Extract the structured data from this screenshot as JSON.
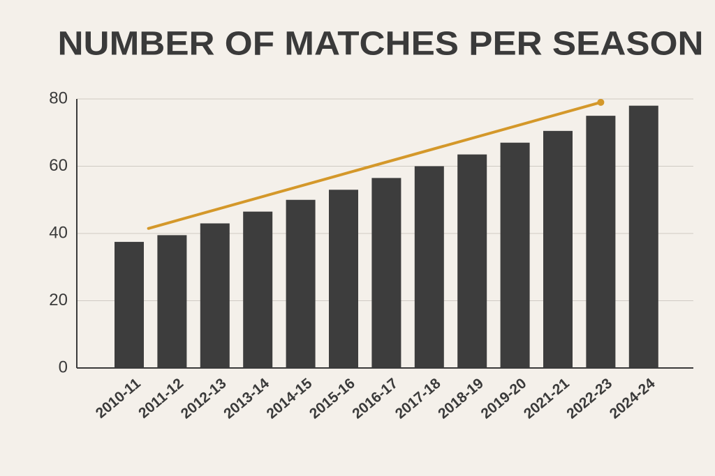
{
  "chart_data": {
    "type": "bar",
    "title": "NUMBER OF MATCHES PER SEASON",
    "categories": [
      "2010-11",
      "2011-12",
      "2012-13",
      "2013-14",
      "2014-15",
      "2015-16",
      "2016-17",
      "2017-18",
      "2018-19",
      "2019-20",
      "2021-21",
      "2022-23",
      "2024-24"
    ],
    "values": [
      37.5,
      39.5,
      43,
      46.5,
      50,
      53,
      56.5,
      60,
      63.5,
      67,
      70.5,
      75,
      78
    ],
    "color": "#3d3d3d",
    "trend": {
      "color": "#d4982a",
      "values": [
        41.5,
        79
      ]
    },
    "ylim": [
      0,
      80
    ],
    "yticks": [
      0,
      20,
      40,
      60,
      80
    ],
    "grid": true
  }
}
